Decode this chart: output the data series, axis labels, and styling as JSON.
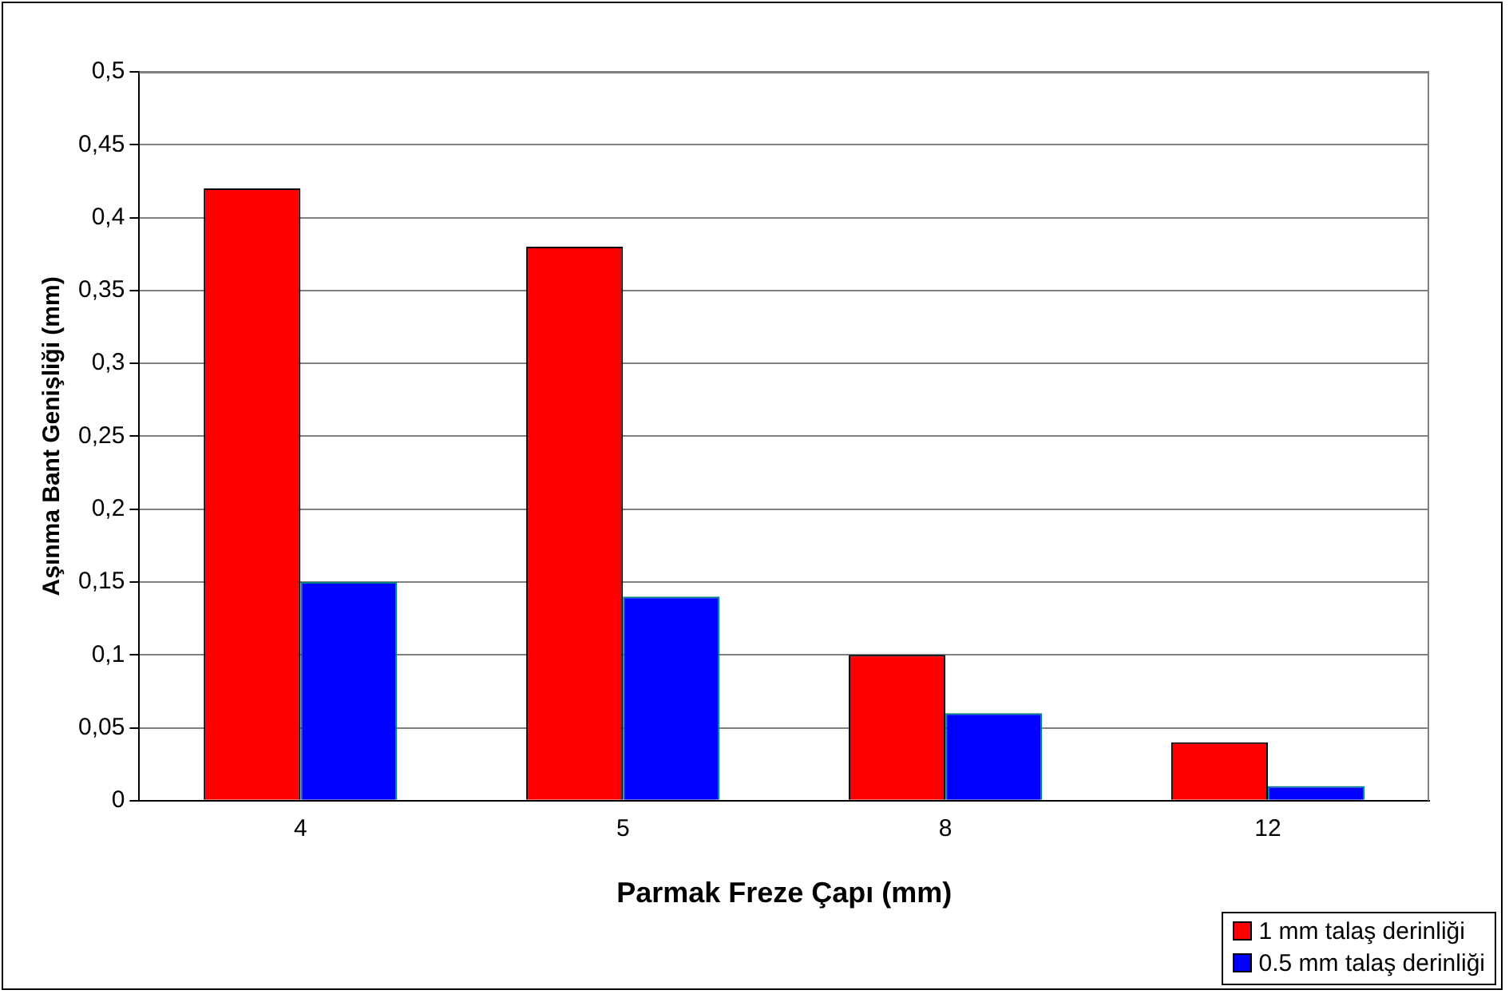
{
  "chart_data": {
    "type": "bar",
    "xlabel": "Parmak Freze Çapı (mm)",
    "ylabel": "Aşınma Bant Genişliği (mm)",
    "categories": [
      "4",
      "5",
      "8",
      "12"
    ],
    "series": [
      {
        "name": "1 mm talaş derinliği",
        "color": "#ff0000",
        "values": [
          0.42,
          0.38,
          0.1,
          0.04
        ]
      },
      {
        "name": "0.5 mm talaş derinliği",
        "color": "#0000ff",
        "values": [
          0.15,
          0.14,
          0.06,
          0.01
        ]
      }
    ],
    "ylim": [
      0,
      0.5
    ],
    "yticks": [
      0,
      {
        "value": 0.05,
        "label": "0,05"
      },
      {
        "value": 0.1,
        "label": "0,1"
      },
      {
        "value": 0.15,
        "label": "0,15"
      },
      {
        "value": 0.2,
        "label": "0,2"
      },
      {
        "value": 0.25,
        "label": "0,25"
      },
      {
        "value": 0.3,
        "label": "0,3"
      },
      {
        "value": 0.35,
        "label": "0,35"
      },
      {
        "value": 0.4,
        "label": "0,4"
      },
      {
        "value": 0.45,
        "label": "0,45"
      },
      {
        "value": 0.5,
        "label": "0,5"
      }
    ],
    "grid": "y",
    "legend": "bottom right"
  }
}
